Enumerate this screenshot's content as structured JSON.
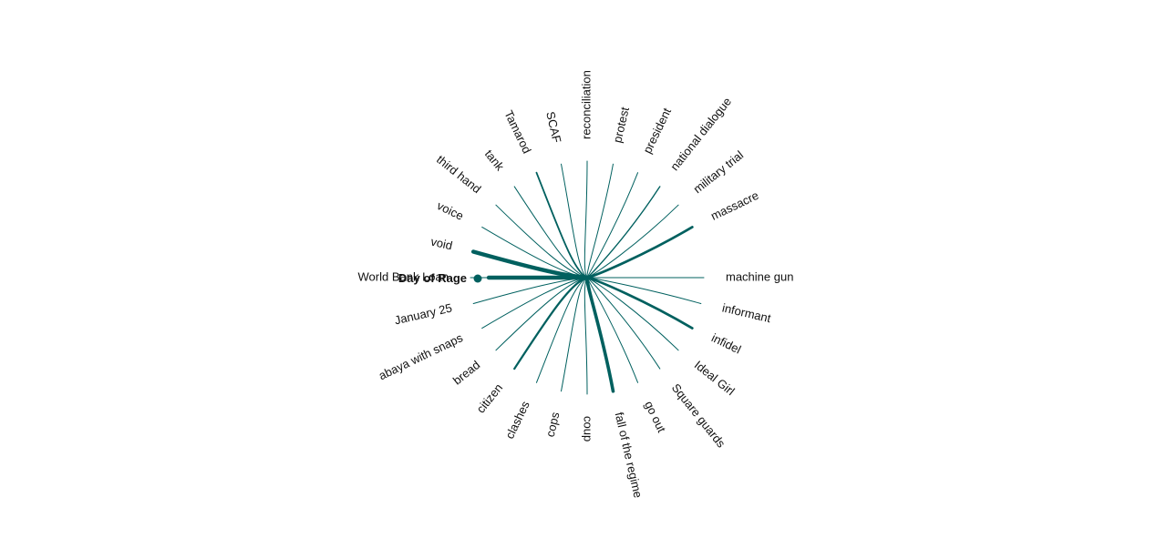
{
  "accent_color": "#00605f",
  "center_term": {
    "label": "Day of Rage",
    "weight": 4
  },
  "terms": [
    {
      "label": "machine gun",
      "weight": 1
    },
    {
      "label": "informant",
      "weight": 1
    },
    {
      "label": "infidel",
      "weight": 3
    },
    {
      "label": "Ideal Girl",
      "weight": 1
    },
    {
      "label": "Square guards",
      "weight": 1
    },
    {
      "label": "go out",
      "weight": 1
    },
    {
      "label": "fall of the regime",
      "weight": 4
    },
    {
      "label": "coup",
      "weight": 1
    },
    {
      "label": "cops",
      "weight": 1
    },
    {
      "label": "clashes",
      "weight": 1
    },
    {
      "label": "citizen",
      "weight": 2.5
    },
    {
      "label": "bread",
      "weight": 1
    },
    {
      "label": "abaya with snaps",
      "weight": 1
    },
    {
      "label": "January 25",
      "weight": 1
    },
    {
      "label": "World Bank Loan",
      "weight": 1
    },
    {
      "label": "void",
      "weight": 5
    },
    {
      "label": "voice",
      "weight": 1
    },
    {
      "label": "third hand",
      "weight": 1
    },
    {
      "label": "tank",
      "weight": 1
    },
    {
      "label": "Tamarod",
      "weight": 2
    },
    {
      "label": "SCAF",
      "weight": 1
    },
    {
      "label": "reconciliation",
      "weight": 1
    },
    {
      "label": "protest",
      "weight": 1
    },
    {
      "label": "president",
      "weight": 1
    },
    {
      "label": "national dialogue",
      "weight": 1.5
    },
    {
      "label": "military trial",
      "weight": 1
    },
    {
      "label": "massacre",
      "weight": 3
    }
  ]
}
